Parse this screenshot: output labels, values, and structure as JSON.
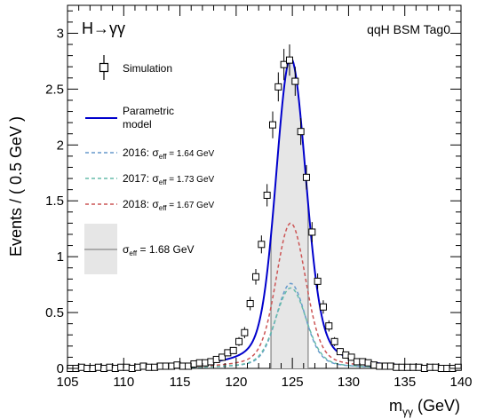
{
  "chart_data": {
    "type": "line",
    "title_left": "H→γγ",
    "title_right": "qqH BSM Tag0",
    "xlabel": "m",
    "xlabel_sub": "γγ",
    "xlabel_unit": " (GeV)",
    "ylabel": "Events / ( 0.5 GeV )",
    "xlim": [
      105,
      140
    ],
    "ylim": [
      0,
      3.25
    ],
    "xticks": [
      "105",
      "110",
      "115",
      "120",
      "125",
      "130",
      "135",
      "140"
    ],
    "yticks": [
      "0",
      "0.5",
      "1",
      "1.5",
      "2",
      "2.5",
      "3"
    ],
    "legend": {
      "simulation": "Simulation",
      "parametric_1": "Parametric",
      "parametric_2": "model",
      "y2016_prefix": "2016: σ",
      "y2016_value": " = 1.64 GeV",
      "y2017_prefix": "2017: σ",
      "y2017_value": " = 1.73 GeV",
      "y2018_prefix": "2018: σ",
      "y2018_value": " = 1.67 GeV",
      "sigma_prefix": "σ",
      "sigma_value": " = 1.68 GeV",
      "eff_sub": "eff"
    },
    "colors": {
      "total": "#0000cc",
      "y2016": "#6699cc",
      "y2017": "#66bbaa",
      "y2018": "#cc5555",
      "band": "#e6e6e6",
      "band_edge": "#999999"
    },
    "sigma_eff_band": [
      123.1,
      126.4
    ],
    "series": [
      {
        "name": "Simulation",
        "kind": "points",
        "x": [
          105.25,
          105.75,
          106.25,
          106.75,
          107.25,
          107.75,
          108.25,
          108.75,
          109.25,
          109.75,
          110.25,
          110.75,
          111.25,
          111.75,
          112.25,
          112.75,
          113.25,
          113.75,
          114.25,
          114.75,
          115.25,
          115.75,
          116.25,
          116.75,
          117.25,
          117.75,
          118.25,
          118.75,
          119.25,
          119.75,
          120.25,
          120.75,
          121.25,
          121.75,
          122.25,
          122.75,
          123.25,
          123.75,
          124.25,
          124.75,
          125.25,
          125.75,
          126.25,
          126.75,
          127.25,
          127.75,
          128.25,
          128.75,
          129.25,
          129.75,
          130.25,
          130.75,
          131.25,
          131.75,
          132.25,
          132.75,
          133.25,
          133.75,
          134.25,
          134.75,
          135.25,
          135.75,
          136.25,
          136.75,
          137.25,
          137.75,
          138.25,
          138.75,
          139.25,
          139.75
        ],
        "y": [
          0.0,
          0.0,
          0.01,
          0.0,
          0.0,
          0.01,
          0.0,
          0.01,
          0.0,
          0.01,
          0.01,
          0.0,
          0.01,
          0.02,
          0.01,
          0.01,
          0.02,
          0.02,
          0.02,
          0.03,
          0.02,
          0.02,
          0.04,
          0.05,
          0.05,
          0.06,
          0.08,
          0.1,
          0.14,
          0.16,
          0.24,
          0.32,
          0.58,
          0.82,
          1.11,
          1.55,
          2.18,
          2.52,
          2.72,
          2.76,
          2.57,
          2.12,
          1.71,
          1.22,
          0.78,
          0.55,
          0.38,
          0.24,
          0.15,
          0.12,
          0.1,
          0.06,
          0.06,
          0.05,
          0.03,
          0.02,
          0.02,
          0.02,
          0.01,
          0.01,
          0.01,
          0.01,
          0.01,
          0.0,
          0.01,
          0.01,
          0.0,
          0.0,
          0.0,
          0.01
        ],
        "yerr": [
          0.01,
          0.01,
          0.01,
          0.01,
          0.01,
          0.01,
          0.01,
          0.01,
          0.01,
          0.01,
          0.01,
          0.01,
          0.01,
          0.01,
          0.01,
          0.01,
          0.01,
          0.01,
          0.01,
          0.02,
          0.01,
          0.02,
          0.02,
          0.02,
          0.02,
          0.02,
          0.03,
          0.03,
          0.03,
          0.03,
          0.04,
          0.05,
          0.06,
          0.07,
          0.08,
          0.1,
          0.12,
          0.13,
          0.14,
          0.14,
          0.13,
          0.12,
          0.11,
          0.09,
          0.07,
          0.06,
          0.05,
          0.04,
          0.03,
          0.03,
          0.03,
          0.02,
          0.02,
          0.02,
          0.02,
          0.01,
          0.01,
          0.01,
          0.01,
          0.01,
          0.01,
          0.01,
          0.01,
          0.01,
          0.01,
          0.01,
          0.01,
          0.01,
          0.01,
          0.01
        ]
      },
      {
        "name": "Parametric model",
        "kind": "curve",
        "model": {
          "mu": 124.85,
          "amp": 2.78,
          "sigma_l": 1.25,
          "sigma_r": 1.3,
          "tail_amp": 0.62,
          "tail_sigma": 2.8
        }
      },
      {
        "name": "2016",
        "kind": "curve",
        "model": {
          "mu": 124.85,
          "amp": 0.76,
          "sigma_l": 1.22,
          "sigma_r": 1.25,
          "tail_amp": 0.17,
          "tail_sigma": 2.7
        }
      },
      {
        "name": "2017",
        "kind": "curve",
        "model": {
          "mu": 124.85,
          "amp": 0.72,
          "sigma_l": 1.28,
          "sigma_r": 1.32,
          "tail_amp": 0.16,
          "tail_sigma": 2.9
        }
      },
      {
        "name": "2018",
        "kind": "curve",
        "model": {
          "mu": 124.85,
          "amp": 1.3,
          "sigma_l": 1.24,
          "sigma_r": 1.28,
          "tail_amp": 0.29,
          "tail_sigma": 2.8
        }
      }
    ]
  }
}
